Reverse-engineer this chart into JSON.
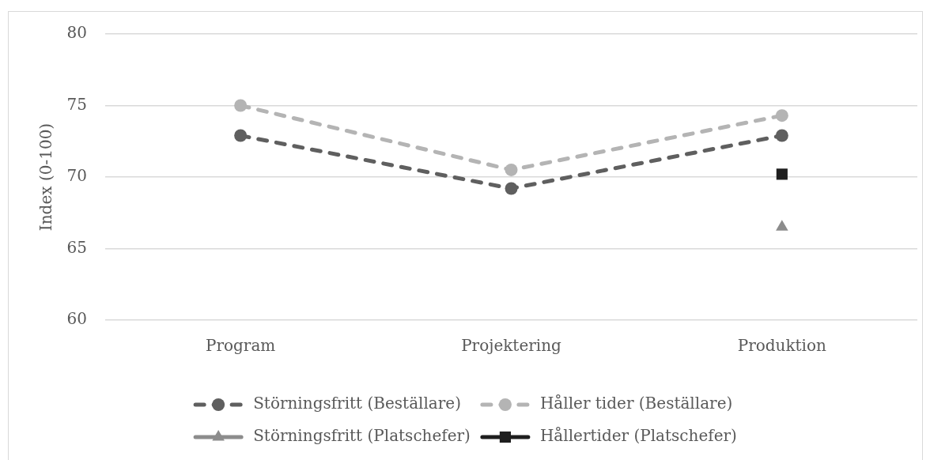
{
  "chart_data": {
    "type": "line",
    "ylabel": "Index (0-100)",
    "categories": [
      "Program",
      "Projektering",
      "Produktion"
    ],
    "series": [
      {
        "name": "Störningsfritt (Beställare)",
        "color": "#5f5f5f",
        "values": [
          72.9,
          69.2,
          72.9
        ],
        "marker": "circle",
        "line_style": "dashed"
      },
      {
        "name": "Håller tider (Beställare)",
        "color": "#b4b4b4",
        "values": [
          75,
          70.5,
          74.3
        ],
        "marker": "circle",
        "line_style": "dashed"
      },
      {
        "name": "Störningsfritt (Platschefer)",
        "color": "#8c8c8c",
        "values": [
          null,
          null,
          66.5
        ],
        "marker": "triangle",
        "line_style": "solid"
      },
      {
        "name": "Hållertider (Platschefer)",
        "color": "#1e1e1e",
        "values": [
          null,
          null,
          70.2
        ],
        "marker": "square",
        "line_style": "solid"
      }
    ],
    "ylim": [
      60,
      80
    ],
    "yticks": [
      60,
      65,
      70,
      75,
      80
    ],
    "grid": "y",
    "legend": "bottom"
  }
}
